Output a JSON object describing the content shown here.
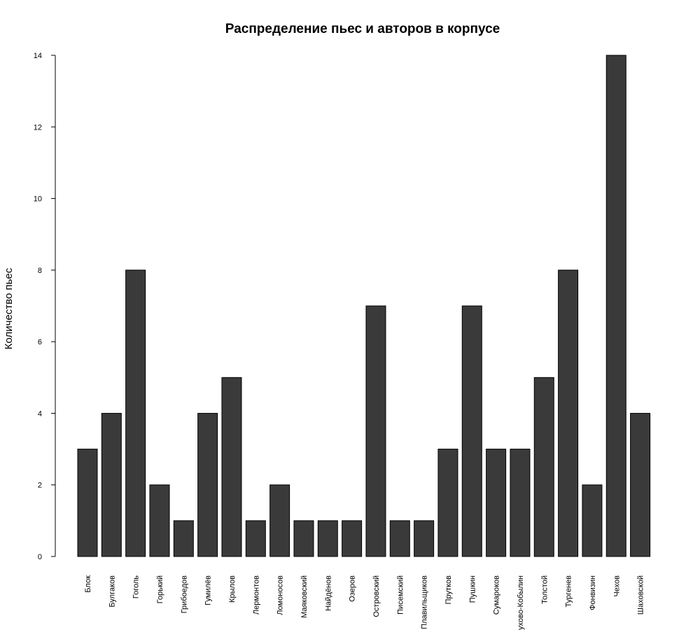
{
  "chart_data": {
    "type": "bar",
    "title": "Распределение пьес и авторов в корпусе",
    "xlabel": "",
    "ylabel": "Количество пьес",
    "ylim": [
      0,
      14
    ],
    "yticks": [
      0,
      2,
      4,
      6,
      8,
      10,
      12,
      14
    ],
    "grid": false,
    "bar_color": "#3a3a3a",
    "categories": [
      "Блок",
      "Булгаков",
      "Гоголь",
      "Горький",
      "Грибоедов",
      "Гумилёв",
      "Крылов",
      "Лермонтов",
      "Ломоносов",
      "Маяковский",
      "Найдёнов",
      "Озеров",
      "Островский",
      "Писемский",
      "Плавильщиков",
      "Прутков",
      "Пушкин",
      "Сумароков",
      "ухово-Кобылин",
      "Толстой",
      "Тургенев",
      "Фонвизин",
      "Чехов",
      "Шаховской"
    ],
    "values": [
      3,
      4,
      8,
      2,
      1,
      4,
      5,
      1,
      2,
      1,
      1,
      1,
      7,
      1,
      1,
      3,
      7,
      3,
      3,
      5,
      8,
      2,
      14,
      4
    ]
  }
}
